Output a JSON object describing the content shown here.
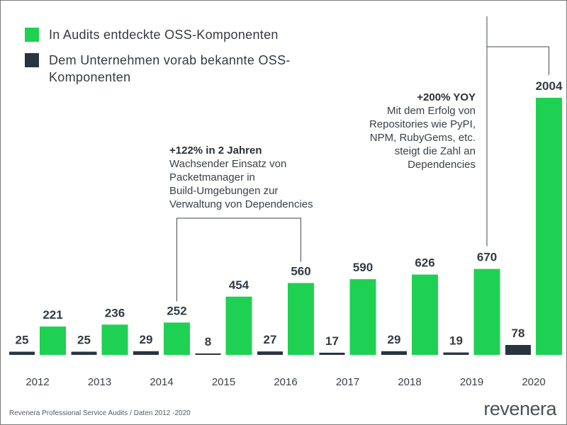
{
  "colors": {
    "audit": "#1fd152",
    "known": "#283540",
    "text": "#3a4148"
  },
  "legend": {
    "audit_label": "In Audits entdeckte OSS-Komponenten",
    "known_label": "Dem Unternehmen vorab bekannte OSS-Komponenten"
  },
  "annotations": {
    "growth_2y": {
      "headline": "+122% in 2 Jahren",
      "lines": [
        "Wachsender Einsatz von",
        "Packetmanager in",
        "Build-Umgebungen zur",
        "Verwaltung von Dependencies"
      ]
    },
    "growth_yoy": {
      "headline": "+200% YOY",
      "lines": [
        "Mit dem Erfolg von",
        "Repositories wie PyPI,",
        "NPM, RubyGems, etc.",
        "steigt die Zahl an",
        "Dependencies"
      ]
    }
  },
  "footer": {
    "source": "Revenera Professional Service Audits / Daten 2012 -2020",
    "logo": "revenera"
  },
  "chart_data": {
    "type": "bar",
    "title": "",
    "xlabel": "",
    "ylabel": "",
    "categories": [
      "2012",
      "2013",
      "2014",
      "2015",
      "2016",
      "2017",
      "2018",
      "2019",
      "2020"
    ],
    "series": [
      {
        "name": "Dem Unternehmen vorab bekannte OSS-Komponenten",
        "values": [
          25,
          25,
          29,
          8,
          27,
          17,
          29,
          19,
          78
        ]
      },
      {
        "name": "In Audits entdeckte OSS-Komponenten",
        "values": [
          221,
          236,
          252,
          454,
          560,
          590,
          626,
          670,
          2004
        ]
      }
    ],
    "ylim": [
      0,
      2004
    ],
    "grid": false,
    "legend_position": "top-left"
  }
}
